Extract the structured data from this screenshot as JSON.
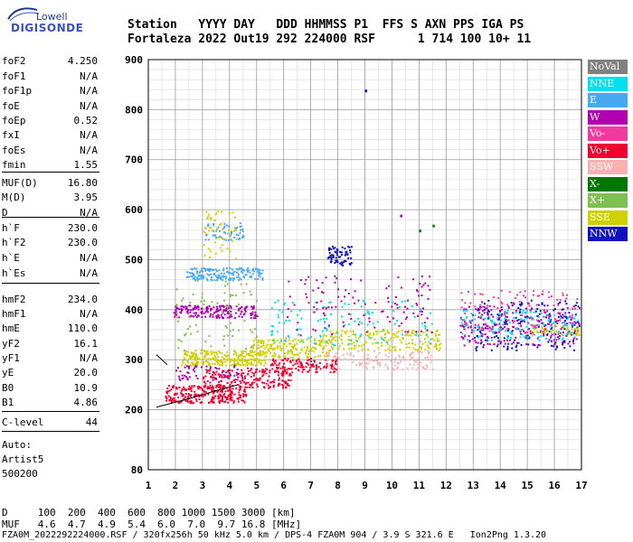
{
  "logo": {
    "line1": "Lowell",
    "line2": "DIGISONDE"
  },
  "header": {
    "labels": "Station   YYYY DAY   DDD HHMMSS P1  FFS S AXN PPS IGA PS",
    "values": "Fortaleza 2022 Out19 292 224000 RSF      1 714 100 10+ 11"
  },
  "params": [
    {
      "name": "foF2",
      "value": "4.250"
    },
    {
      "name": "foF1",
      "value": "N/A"
    },
    {
      "name": "foF1p",
      "value": "N/A"
    },
    {
      "name": "foE",
      "value": "N/A"
    },
    {
      "name": "foEp",
      "value": "0.52"
    },
    {
      "name": "fxI",
      "value": "N/A"
    },
    {
      "name": "foEs",
      "value": "N/A"
    },
    {
      "name": "fmin",
      "value": "1.55"
    },
    {
      "name": "MUF(D)",
      "value": "16.80"
    },
    {
      "name": "M(D)",
      "value": "3.95"
    },
    {
      "name": "D",
      "value": "N/A"
    },
    {
      "name": "h`F",
      "value": "230.0"
    },
    {
      "name": "h`F2",
      "value": "230.0"
    },
    {
      "name": "h`E",
      "value": "N/A"
    },
    {
      "name": "h`Es",
      "value": "N/A"
    },
    {
      "name": "hmF2",
      "value": "234.0"
    },
    {
      "name": "hmF1",
      "value": "N/A"
    },
    {
      "name": "hmE",
      "value": "110.0"
    },
    {
      "name": "yF2",
      "value": "16.1"
    },
    {
      "name": "yF1",
      "value": "N/A"
    },
    {
      "name": "yE",
      "value": "20.0"
    },
    {
      "name": "B0",
      "value": "10.9"
    },
    {
      "name": "B1",
      "value": "4.86"
    },
    {
      "name": "C-level",
      "value": "44"
    }
  ],
  "auto": {
    "line1": "Auto:",
    "line2": "Artist5",
    "line3": "500200"
  },
  "bottom": {
    "d_line": "D     100  200  400  600  800 1000 1500 3000 [km]",
    "muf_line": "MUF   4.6  4.7  4.9  5.4  6.0  7.0  9.7 16.8 [MHz]",
    "file_line": "FZA0M_2022292224000.RSF / 320fx256h 50 kHz 5.0 km / DPS-4 FZA0M 904 / 3.9 S 321.6 E   Ion2Png 1.3.20"
  },
  "legend": [
    {
      "label": "NoVal",
      "color": "#808080"
    },
    {
      "label": "NNE",
      "color": "#00e0f0"
    },
    {
      "label": "E",
      "color": "#48a8f0"
    },
    {
      "label": "W",
      "color": "#b000b0"
    },
    {
      "label": "Vo-",
      "color": "#f03aa0"
    },
    {
      "label": "Vo+",
      "color": "#f00030"
    },
    {
      "label": "SSW",
      "color": "#f8b0b0"
    },
    {
      "label": "X-",
      "color": "#007800"
    },
    {
      "label": "X+",
      "color": "#80c050"
    },
    {
      "label": "SSE",
      "color": "#d0d000"
    },
    {
      "label": "NNW",
      "color": "#1010c0"
    }
  ],
  "chart_data": {
    "type": "scatter",
    "xlabel": "",
    "ylabel": "",
    "xlim": [
      1,
      17
    ],
    "ylim": [
      80,
      900
    ],
    "x_ticks": [
      "1",
      "2",
      "3",
      "4",
      "5",
      "6",
      "7",
      "8",
      "9",
      "10",
      "11",
      "12",
      "13",
      "14",
      "15",
      "16",
      "17"
    ],
    "y_ticks": [
      "80",
      "200",
      "300",
      "400",
      "500",
      "600",
      "700",
      "800",
      "900"
    ],
    "clusters": [
      {
        "series": "Vo+",
        "x": [
          1.6,
          4.6
        ],
        "y": [
          215,
          250
        ],
        "n": 260
      },
      {
        "series": "Vo+",
        "x": [
          3.0,
          6.3
        ],
        "y": [
          245,
          285
        ],
        "n": 200
      },
      {
        "series": "Vo+",
        "x": [
          5.5,
          8.0
        ],
        "y": [
          275,
          305
        ],
        "n": 120
      },
      {
        "series": "SSE",
        "x": [
          2.2,
          5.3
        ],
        "y": [
          290,
          320
        ],
        "n": 260
      },
      {
        "series": "SSE",
        "x": [
          4.8,
          7.6
        ],
        "y": [
          305,
          345
        ],
        "n": 180
      },
      {
        "series": "SSE",
        "x": [
          7.4,
          11.8
        ],
        "y": [
          320,
          360
        ],
        "n": 200
      },
      {
        "series": "SSW",
        "x": [
          7.5,
          11.5
        ],
        "y": [
          280,
          320
        ],
        "n": 120
      },
      {
        "series": "W",
        "x": [
          1.9,
          5.0
        ],
        "y": [
          385,
          410
        ],
        "n": 180
      },
      {
        "series": "W",
        "x": [
          2.0,
          4.5
        ],
        "y": [
          260,
          290
        ],
        "n": 60
      },
      {
        "series": "E",
        "x": [
          2.4,
          5.2
        ],
        "y": [
          460,
          485
        ],
        "n": 170
      },
      {
        "series": "E",
        "x": [
          3.0,
          4.5
        ],
        "y": [
          540,
          575
        ],
        "n": 60
      },
      {
        "series": "SSE",
        "x": [
          3.0,
          4.3
        ],
        "y": [
          500,
          600
        ],
        "n": 50
      },
      {
        "series": "NNW",
        "x": [
          7.6,
          8.5
        ],
        "y": [
          490,
          530
        ],
        "n": 70
      },
      {
        "series": "X+",
        "x": [
          2.0,
          5.0
        ],
        "y": [
          320,
          460
        ],
        "n": 80
      },
      {
        "series": "W",
        "x": [
          12.5,
          16.9
        ],
        "y": [
          330,
          410
        ],
        "n": 230
      },
      {
        "series": "NNW",
        "x": [
          13.0,
          16.9
        ],
        "y": [
          320,
          420
        ],
        "n": 180
      },
      {
        "series": "NNE",
        "x": [
          12.5,
          16.9
        ],
        "y": [
          340,
          400
        ],
        "n": 140
      },
      {
        "series": "Vo-",
        "x": [
          12.5,
          16.9
        ],
        "y": [
          350,
          440
        ],
        "n": 120
      },
      {
        "series": "SSE",
        "x": [
          15.0,
          16.9
        ],
        "y": [
          350,
          370
        ],
        "n": 40
      },
      {
        "series": "NNE",
        "x": [
          5.5,
          11.5
        ],
        "y": [
          330,
          420
        ],
        "n": 120
      },
      {
        "series": "W",
        "x": [
          6.0,
          11.5
        ],
        "y": [
          350,
          470
        ],
        "n": 120
      }
    ],
    "outliers": [
      {
        "series": "NNW",
        "x": 9.0,
        "y": 840
      },
      {
        "series": "X-",
        "x": 11.0,
        "y": 560
      },
      {
        "series": "X-",
        "x": 11.5,
        "y": 570
      },
      {
        "series": "W",
        "x": 10.3,
        "y": 590
      }
    ],
    "curve": {
      "x": [
        1.3,
        1.5,
        2.0,
        2.5,
        3.0,
        3.5,
        4.0,
        4.3
      ],
      "y": [
        205,
        208,
        215,
        222,
        230,
        238,
        245,
        250
      ]
    },
    "curve2": {
      "x": [
        1.3,
        1.5,
        1.7
      ],
      "y": [
        310,
        300,
        290
      ]
    }
  }
}
